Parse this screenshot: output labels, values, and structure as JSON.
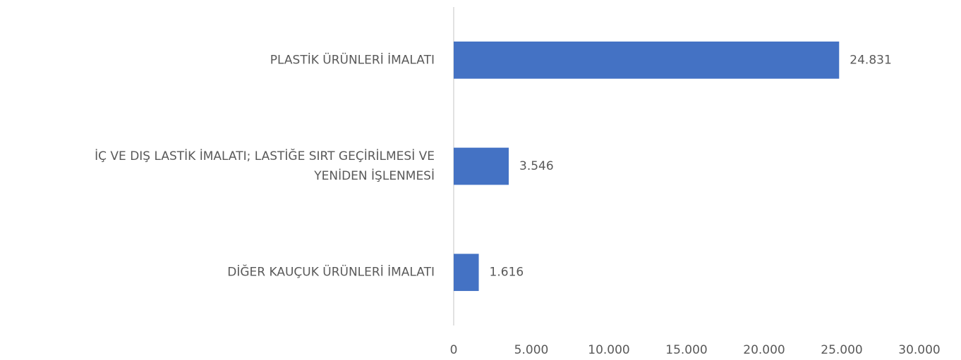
{
  "chart_data": {
    "type": "bar",
    "orientation": "horizontal",
    "categories": [
      "PLASTİK ÜRÜNLERİ İMALATI",
      "İÇ VE DIŞ LASTİK İMALATI;  LASTİĞE SIRT GEÇİRİLMESİ VE\nYENİDEN İŞLENMESİ",
      "DİĞER KAUÇUK ÜRÜNLERİ İMALATI"
    ],
    "values": [
      24831,
      3546,
      1616
    ],
    "value_labels": [
      "24.831",
      "3.546",
      "1.616"
    ],
    "color": "#4472c4",
    "xlim": [
      0,
      30000
    ],
    "xticks": [
      0,
      {
        "value": 5000,
        "label": "5.000"
      },
      {
        "value": 10000,
        "label": "10.000"
      },
      {
        "value": 15000,
        "label": "15.000"
      },
      {
        "value": 20000,
        "label": "20.000"
      },
      {
        "value": 25000,
        "label": "25.000"
      },
      {
        "value": 30000,
        "label": "30.000"
      }
    ],
    "grid": false
  }
}
